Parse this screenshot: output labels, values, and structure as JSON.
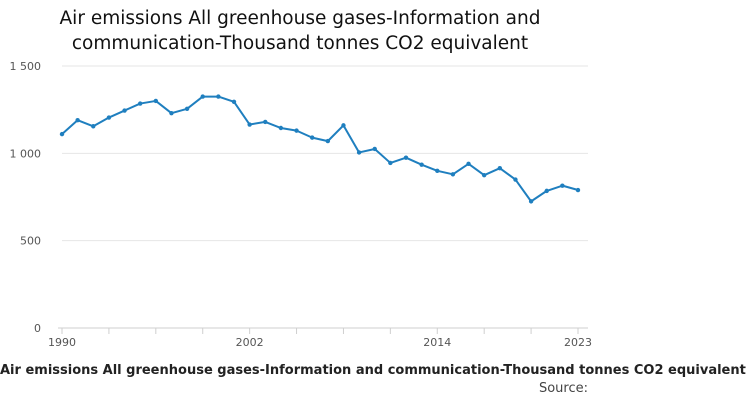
{
  "chart_data": {
    "type": "line",
    "title": "Air emissions All greenhouse gases-Information and communication-Thousand tonnes CO2 equivalent",
    "footer_title": "Air emissions All greenhouse gases-Information and communication-Thousand tonnes CO2 equivalent",
    "source_label": "Source:",
    "series_color": "#1f7fbf",
    "ylim": [
      0,
      1500
    ],
    "yticks": [
      0,
      500,
      1000,
      1500
    ],
    "ytick_labels": [
      "0",
      "500",
      "1 000",
      "1 500"
    ],
    "xlim": [
      1990,
      2023
    ],
    "xticks_labeled": [
      1990,
      2002,
      2014,
      2023
    ],
    "xtick_labels": [
      "1990",
      "2002",
      "2014",
      "2023"
    ],
    "xticks_minor": [
      1993,
      1996,
      1999,
      2005,
      2008,
      2011,
      2017,
      2020
    ],
    "grid": true,
    "series": [
      {
        "x": [
          1990,
          1991,
          1992,
          1993,
          1994,
          1995,
          1996,
          1997,
          1998,
          1999,
          2000,
          2001,
          2002,
          2003,
          2004,
          2005,
          2006,
          2007,
          2008,
          2009,
          2010,
          2011,
          2012,
          2013,
          2014,
          2015,
          2016,
          2017,
          2018,
          2019,
          2020,
          2021,
          2022,
          2023
        ],
        "values": [
          1110,
          1190,
          1155,
          1205,
          1245,
          1285,
          1300,
          1230,
          1255,
          1325,
          1325,
          1295,
          1165,
          1180,
          1145,
          1130,
          1090,
          1070,
          1160,
          1005,
          1025,
          945,
          975,
          935,
          900,
          880,
          940,
          875,
          915,
          850,
          725,
          785,
          815,
          790
        ]
      }
    ]
  }
}
